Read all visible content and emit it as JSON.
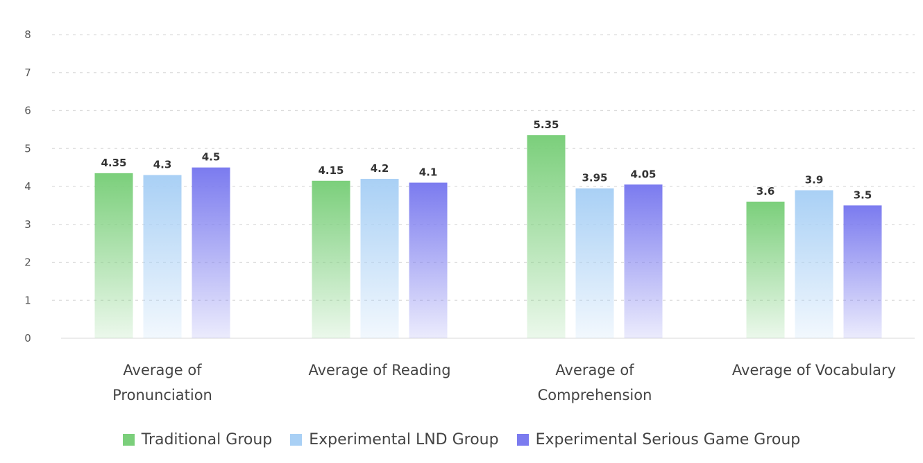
{
  "chart_data": {
    "type": "bar",
    "categories": [
      [
        "Average of",
        "Pronunciation"
      ],
      [
        "Average of Reading"
      ],
      [
        "Average of",
        "Comprehension"
      ],
      [
        "Average of Vocabulary"
      ]
    ],
    "series": [
      {
        "name": "Traditional Group",
        "color": "#7bcf7b",
        "values": [
          4.35,
          4.15,
          5.35,
          3.6
        ],
        "labels": [
          "4.35",
          "4.15",
          "5.35",
          "3.6"
        ]
      },
      {
        "name": "Experimental LND Group",
        "color": "#a9d0f5",
        "values": [
          4.3,
          4.2,
          3.95,
          3.9
        ],
        "labels": [
          "4.3",
          "4.2",
          "3.95",
          "3.9"
        ]
      },
      {
        "name": "Experimental Serious Game Group",
        "color": "#7b7bef",
        "values": [
          4.5,
          4.1,
          4.05,
          3.5
        ],
        "labels": [
          "4.5",
          "4.1",
          "4.05",
          "3.5"
        ]
      }
    ],
    "yticks": [
      "0",
      "1",
      "2",
      "3",
      "4",
      "5",
      "6",
      "7",
      "8"
    ],
    "ylim": [
      0,
      8
    ],
    "grid": true,
    "legend_position": "bottom"
  },
  "legend": {
    "items": [
      {
        "label": "Traditional Group",
        "color": "#7bcf7b"
      },
      {
        "label": "Experimental LND Group",
        "color": "#a9d0f5"
      },
      {
        "label": "Experimental Serious Game Group",
        "color": "#7b7bef"
      }
    ]
  }
}
